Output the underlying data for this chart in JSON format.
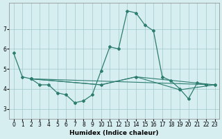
{
  "xlabel": "Humidex (Indice chaleur)",
  "background_color": "#d6eef0",
  "line_color": "#2d7d6e",
  "grid_color": "#a0c8cc",
  "xlim": [
    -0.5,
    23.5
  ],
  "ylim": [
    2.5,
    8.3
  ],
  "yticks": [
    3,
    4,
    5,
    6,
    7
  ],
  "xticks": [
    0,
    1,
    2,
    3,
    4,
    5,
    6,
    7,
    8,
    9,
    10,
    11,
    12,
    13,
    14,
    15,
    16,
    17,
    18,
    19,
    20,
    21,
    22,
    23
  ],
  "main_line": {
    "x": [
      0,
      1,
      2,
      3,
      4,
      5,
      6,
      7,
      8,
      9,
      10,
      11,
      12,
      13,
      14,
      15,
      16,
      17,
      18,
      19,
      20,
      21,
      22
    ],
    "y": [
      5.8,
      4.6,
      4.5,
      4.2,
      4.2,
      3.8,
      3.7,
      3.3,
      3.4,
      3.7,
      4.9,
      6.1,
      6.0,
      7.9,
      7.8,
      7.2,
      6.9,
      4.6,
      4.4,
      4.0,
      3.5,
      4.3,
      4.2
    ]
  },
  "flat_lines": [
    {
      "x": [
        2,
        23
      ],
      "y": [
        4.5,
        4.2
      ]
    },
    {
      "x": [
        2,
        10,
        14,
        23
      ],
      "y": [
        4.5,
        4.2,
        4.6,
        4.2
      ]
    },
    {
      "x": [
        2,
        10,
        14,
        19,
        23
      ],
      "y": [
        4.5,
        4.2,
        4.6,
        3.95,
        4.2
      ]
    }
  ]
}
